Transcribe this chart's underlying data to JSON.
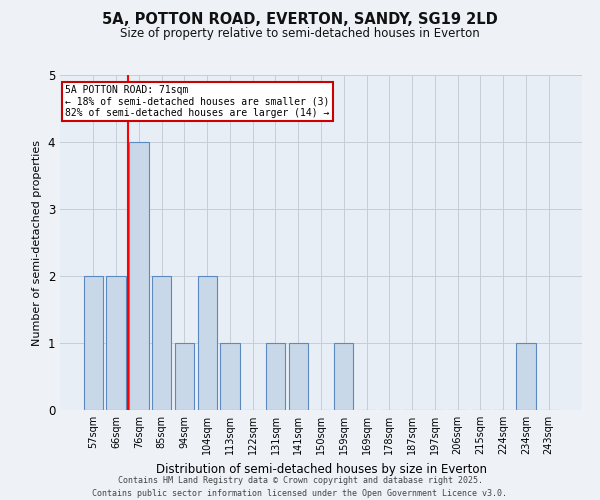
{
  "title_line1": "5A, POTTON ROAD, EVERTON, SANDY, SG19 2LD",
  "title_line2": "Size of property relative to semi-detached houses in Everton",
  "xlabel": "Distribution of semi-detached houses by size in Everton",
  "ylabel": "Number of semi-detached properties",
  "categories": [
    "57sqm",
    "66sqm",
    "76sqm",
    "85sqm",
    "94sqm",
    "104sqm",
    "113sqm",
    "122sqm",
    "131sqm",
    "141sqm",
    "150sqm",
    "159sqm",
    "169sqm",
    "178sqm",
    "187sqm",
    "197sqm",
    "206sqm",
    "215sqm",
    "224sqm",
    "234sqm",
    "243sqm"
  ],
  "values": [
    2,
    2,
    4,
    2,
    1,
    2,
    1,
    0,
    1,
    1,
    0,
    1,
    0,
    0,
    0,
    0,
    0,
    0,
    0,
    1,
    0
  ],
  "bar_color": "#c8d8e8",
  "bar_edge_color": "#5a8abf",
  "subject_label": "5A POTTON ROAD: 71sqm",
  "smaller_text": "← 18% of semi-detached houses are smaller (3)",
  "larger_text": "82% of semi-detached houses are larger (14) →",
  "annotation_box_color": "#cc0000",
  "ylim": [
    0,
    5
  ],
  "yticks": [
    0,
    1,
    2,
    3,
    4,
    5
  ],
  "footer_line1": "Contains HM Land Registry data © Crown copyright and database right 2025.",
  "footer_line2": "Contains public sector information licensed under the Open Government Licence v3.0.",
  "bg_color": "#eef2f7",
  "plot_bg_color": "#e8eef5",
  "grid_color": "#c5cdd8"
}
